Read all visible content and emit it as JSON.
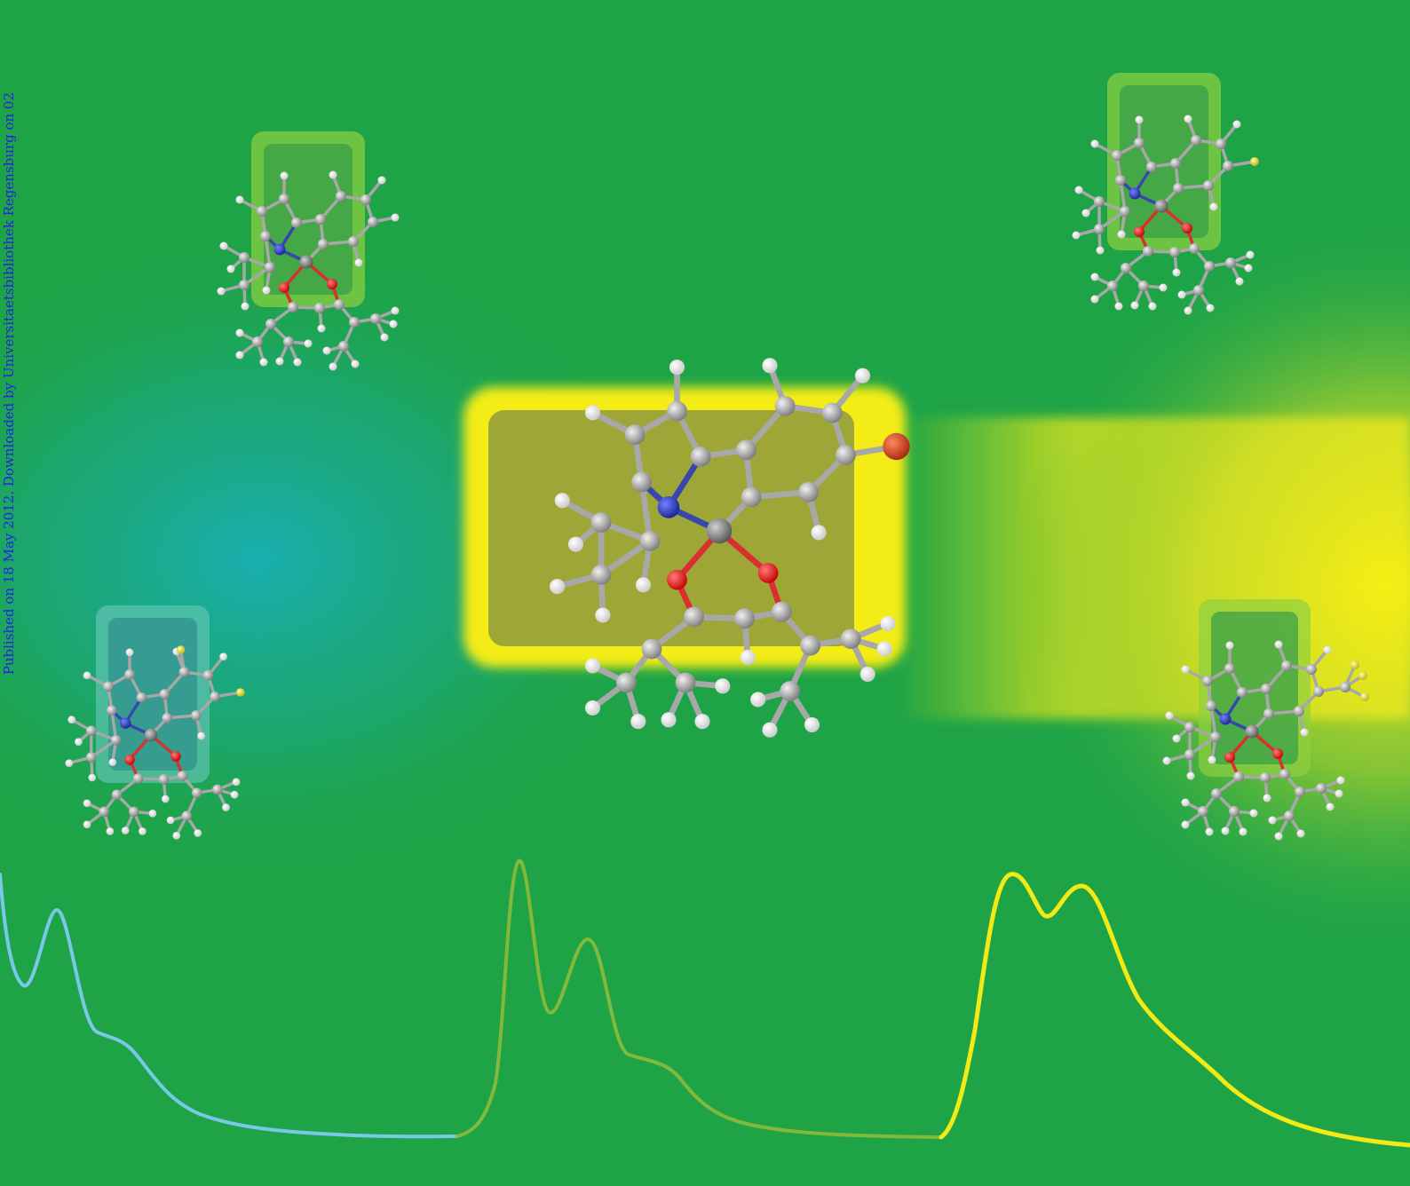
{
  "sidebar": {
    "text": "Published on 18 May 2012. Downloaded by Universitaetsbibliothek Regensburg on 02"
  },
  "colors": {
    "background_green": "#1ea447",
    "cyan_glow": "#19aeb3",
    "yellow_glow": "#f3ec19",
    "curve_cyan": "#78c8e6",
    "curve_green": "#82b93c",
    "curve_yellow": "#f2ea14",
    "carbon": "#9a9a9a",
    "hydrogen": "#f2f2f2",
    "nitrogen": "#2332a6",
    "oxygen": "#e61414",
    "boron": "#7c7c7c",
    "bromine": "#cf3a1b",
    "fluorine": "#d9d92a"
  },
  "molecules": [
    {
      "name": "top-left",
      "substituent": "none"
    },
    {
      "name": "top-right",
      "substituent": "fluorine"
    },
    {
      "name": "center",
      "substituent": "bromine"
    },
    {
      "name": "bottom-left",
      "substituent": "difluoro"
    },
    {
      "name": "bottom-right",
      "substituent": "trifluoromethyl"
    }
  ],
  "emission_curves": [
    "cyan",
    "green",
    "yellow"
  ]
}
